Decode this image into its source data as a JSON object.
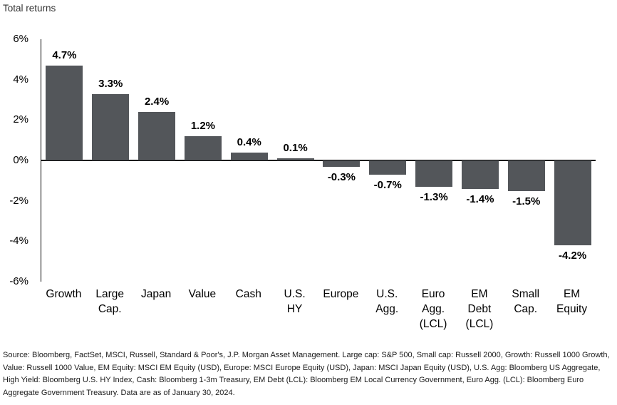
{
  "page": {
    "title": "Total returns"
  },
  "chart_data": {
    "type": "bar",
    "title": "Total returns",
    "xlabel": "",
    "ylabel": "",
    "categories": [
      "Growth",
      "Large Cap.",
      "Japan",
      "Value",
      "Cash",
      "U.S. HY",
      "Europe",
      "U.S. Agg.",
      "Euro Agg. (LCL)",
      "EM Debt (LCL)",
      "Small Cap.",
      "EM Equity"
    ],
    "categories_display": [
      [
        "Growth"
      ],
      [
        "Large",
        "Cap."
      ],
      [
        "Japan"
      ],
      [
        "Value"
      ],
      [
        "Cash"
      ],
      [
        "U.S.",
        "HY"
      ],
      [
        "Europe"
      ],
      [
        "U.S.",
        "Agg."
      ],
      [
        "Euro",
        "Agg.",
        "(LCL)"
      ],
      [
        "EM",
        "Debt",
        "(LCL)"
      ],
      [
        "Small",
        "Cap."
      ],
      [
        "EM",
        "Equity"
      ]
    ],
    "values": [
      4.7,
      3.3,
      2.4,
      1.2,
      0.4,
      0.1,
      -0.3,
      -0.7,
      -1.3,
      -1.4,
      -1.5,
      -4.2
    ],
    "data_labels": [
      "4.7%",
      "3.3%",
      "2.4%",
      "1.2%",
      "0.4%",
      "0.1%",
      "-0.3%",
      "-0.7%",
      "-1.3%",
      "-1.4%",
      "-1.5%",
      "-4.2%"
    ],
    "ylim": [
      -6,
      6
    ],
    "yticks": [
      {
        "value": 6,
        "label": "6%"
      },
      {
        "value": 4,
        "label": "4%"
      },
      {
        "value": 2,
        "label": "2%"
      },
      {
        "value": 0,
        "label": "0%"
      },
      {
        "value": -2,
        "label": "-2%"
      },
      {
        "value": -4,
        "label": "-4%"
      },
      {
        "value": -6,
        "label": "-6%"
      }
    ],
    "grid": false,
    "legend": false,
    "bar_color": "#53565A",
    "axis_color": "#000000"
  },
  "footer": {
    "source": "Source: Bloomberg, FactSet, MSCI, Russell, Standard & Poor's, J.P. Morgan Asset Management. Large cap: S&P 500, Small cap: Russell 2000, Growth: Russell 1000 Growth, Value: Russell 1000 Value, EM Equity: MSCI EM Equity (USD), Europe: MSCI Europe Equity (USD), Japan: MSCI Japan Equity (USD), U.S. Agg: Bloomberg US Aggregate, High Yield: Bloomberg U.S. HY Index, Cash: Bloomberg 1-3m Treasury, EM Debt (LCL): Bloomberg EM Local Currency Government, Euro Agg. (LCL): Bloomberg Euro Aggregate Government Treasury. Data are as of January 30, 2024."
  }
}
